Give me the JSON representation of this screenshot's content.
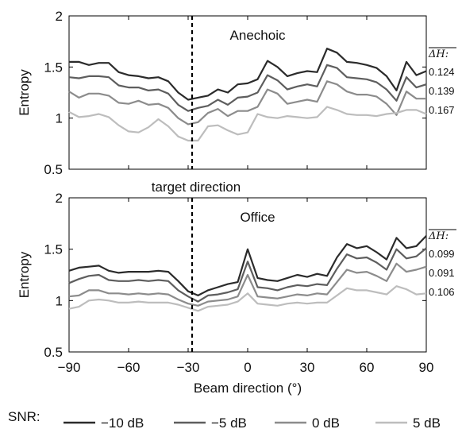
{
  "chart_data": {
    "type": "line",
    "xlabel": "Beam direction (°)",
    "xlim": [
      -90,
      90
    ],
    "xticks": [
      "−90",
      "−60",
      "−30",
      "0",
      "30",
      "60",
      "90"
    ],
    "yticks": [
      "0.5",
      "1",
      "1.5",
      "2"
    ],
    "ylim": [
      0.5,
      2
    ],
    "x": [
      -90,
      -85,
      -80,
      -75,
      -70,
      -65,
      -60,
      -55,
      -50,
      -45,
      -40,
      -35,
      -30,
      -25,
      -20,
      -15,
      -10,
      -5,
      0,
      5,
      10,
      15,
      20,
      25,
      30,
      35,
      40,
      45,
      50,
      55,
      60,
      65,
      70,
      75,
      80,
      85,
      90
    ],
    "target_direction": -28,
    "target_label": "target direction",
    "legend_title": "SNR:",
    "series_names": [
      "−10 dB",
      "−5 dB",
      "0 dB",
      "5 dB"
    ],
    "series_colors": [
      "#2b2b2b",
      "#5e5e5e",
      "#8c8c8c",
      "#bdbdbd"
    ],
    "panels": [
      {
        "title": "Anechoic",
        "ylabel": "Entropy",
        "delta_label": "ΔH:",
        "deltas": [
          "0.124",
          "0.139",
          "0.167"
        ],
        "series": [
          {
            "name": "−10 dB",
            "values": [
              1.55,
              1.55,
              1.52,
              1.54,
              1.54,
              1.45,
              1.42,
              1.41,
              1.39,
              1.4,
              1.36,
              1.25,
              1.18,
              1.2,
              1.22,
              1.28,
              1.25,
              1.33,
              1.34,
              1.38,
              1.56,
              1.5,
              1.41,
              1.44,
              1.46,
              1.45,
              1.68,
              1.64,
              1.55,
              1.54,
              1.52,
              1.49,
              1.41,
              1.27,
              1.55,
              1.42,
              1.46
            ]
          },
          {
            "name": "−5 dB",
            "values": [
              1.4,
              1.39,
              1.41,
              1.41,
              1.4,
              1.32,
              1.3,
              1.3,
              1.27,
              1.28,
              1.24,
              1.13,
              1.07,
              1.1,
              1.12,
              1.18,
              1.13,
              1.2,
              1.21,
              1.25,
              1.42,
              1.37,
              1.28,
              1.31,
              1.33,
              1.31,
              1.52,
              1.49,
              1.4,
              1.39,
              1.38,
              1.35,
              1.28,
              1.17,
              1.4,
              1.3,
              1.33
            ]
          },
          {
            "name": "0 dB",
            "values": [
              1.26,
              1.2,
              1.24,
              1.24,
              1.22,
              1.15,
              1.14,
              1.17,
              1.13,
              1.14,
              1.1,
              1.0,
              0.94,
              0.96,
              1.05,
              1.09,
              1.02,
              1.07,
              1.07,
              1.11,
              1.28,
              1.24,
              1.14,
              1.16,
              1.18,
              1.16,
              1.36,
              1.33,
              1.26,
              1.23,
              1.23,
              1.21,
              1.14,
              1.03,
              1.26,
              1.19,
              1.19
            ]
          },
          {
            "name": "5 dB",
            "values": [
              1.06,
              1.01,
              1.02,
              1.04,
              1.01,
              0.93,
              0.87,
              0.86,
              0.91,
              0.99,
              0.92,
              0.82,
              0.78,
              0.78,
              0.92,
              0.93,
              0.88,
              0.84,
              0.86,
              1.04,
              1.01,
              1.0,
              1.02,
              1.01,
              1.0,
              1.01,
              1.11,
              1.08,
              1.04,
              1.03,
              1.03,
              1.02,
              1.04,
              1.05,
              1.08,
              1.08,
              1.04
            ]
          }
        ]
      },
      {
        "title": "Office",
        "ylabel": "Entropy",
        "delta_label": "ΔH:",
        "deltas": [
          "0.099",
          "0.091",
          "0.106"
        ],
        "series": [
          {
            "name": "−10 dB",
            "values": [
              1.29,
              1.32,
              1.33,
              1.34,
              1.29,
              1.27,
              1.28,
              1.28,
              1.28,
              1.29,
              1.28,
              1.19,
              1.09,
              1.05,
              1.1,
              1.13,
              1.16,
              1.18,
              1.5,
              1.22,
              1.2,
              1.19,
              1.22,
              1.25,
              1.23,
              1.26,
              1.24,
              1.42,
              1.55,
              1.51,
              1.53,
              1.47,
              1.4,
              1.61,
              1.51,
              1.53,
              1.63
            ]
          },
          {
            "name": "−5 dB",
            "values": [
              1.17,
              1.21,
              1.24,
              1.25,
              1.2,
              1.19,
              1.19,
              1.2,
              1.19,
              1.2,
              1.19,
              1.1,
              1.04,
              0.99,
              1.05,
              1.06,
              1.08,
              1.11,
              1.38,
              1.13,
              1.12,
              1.1,
              1.13,
              1.15,
              1.14,
              1.16,
              1.15,
              1.31,
              1.45,
              1.41,
              1.42,
              1.37,
              1.3,
              1.5,
              1.41,
              1.43,
              1.51
            ]
          },
          {
            "name": "0 dB",
            "values": [
              1.04,
              1.05,
              1.1,
              1.1,
              1.07,
              1.07,
              1.06,
              1.07,
              1.06,
              1.07,
              1.06,
              1.01,
              0.97,
              0.95,
              0.99,
              1.0,
              1.01,
              1.04,
              1.25,
              1.04,
              1.03,
              1.02,
              1.04,
              1.06,
              1.05,
              1.07,
              1.06,
              1.18,
              1.3,
              1.27,
              1.28,
              1.24,
              1.19,
              1.36,
              1.28,
              1.3,
              1.33
            ]
          },
          {
            "name": "5 dB",
            "values": [
              0.92,
              0.94,
              1.0,
              1.01,
              1.0,
              0.98,
              0.98,
              0.99,
              0.98,
              0.98,
              0.98,
              0.96,
              0.93,
              0.9,
              0.94,
              0.95,
              0.96,
              0.99,
              1.07,
              0.97,
              0.96,
              0.95,
              0.97,
              0.98,
              0.97,
              0.98,
              0.98,
              1.05,
              1.12,
              1.1,
              1.1,
              1.08,
              1.06,
              1.14,
              1.11,
              1.06,
              1.07
            ]
          }
        ]
      }
    ]
  }
}
